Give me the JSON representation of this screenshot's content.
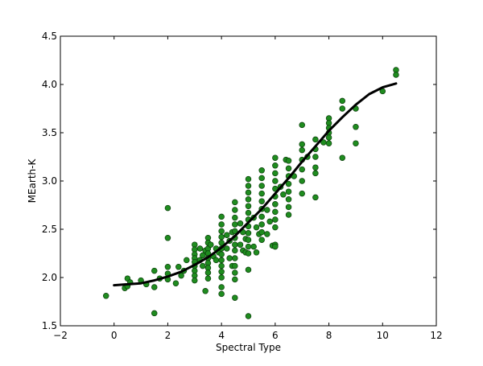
{
  "chart_data": {
    "type": "scatter",
    "xlabel": "Spectral Type",
    "ylabel": "MEarth-K",
    "xlim": [
      -2,
      12
    ],
    "ylim": [
      1.5,
      4.5
    ],
    "x_ticks": [
      -2,
      0,
      2,
      4,
      6,
      8,
      10,
      12
    ],
    "y_ticks": [
      1.5,
      2.0,
      2.5,
      3.0,
      3.5,
      4.0,
      4.5
    ],
    "x_tick_labels": [
      "−2",
      "0",
      "2",
      "4",
      "6",
      "8",
      "10",
      "12"
    ],
    "y_tick_labels": [
      "1.5",
      "2.0",
      "2.5",
      "3.0",
      "3.5",
      "4.0",
      "4.5"
    ],
    "grid": false,
    "marker_color": "#1f8c1f",
    "marker_edge_color": "#0b3d0b",
    "fit_color": "#000000",
    "series": [
      {
        "kind": "scatter",
        "points": [
          [
            -0.3,
            1.81
          ],
          [
            0.4,
            1.89
          ],
          [
            0.5,
            1.91
          ],
          [
            0.5,
            1.99
          ],
          [
            0.6,
            1.95
          ],
          [
            1.0,
            1.97
          ],
          [
            1.2,
            1.93
          ],
          [
            1.5,
            1.9
          ],
          [
            1.5,
            1.63
          ],
          [
            1.5,
            2.07
          ],
          [
            1.7,
            1.99
          ],
          [
            2.0,
            2.72
          ],
          [
            2.0,
            2.41
          ],
          [
            2.0,
            2.11
          ],
          [
            2.0,
            2.04
          ],
          [
            2.0,
            1.98
          ],
          [
            2.3,
            1.94
          ],
          [
            2.4,
            2.11
          ],
          [
            2.5,
            2.02
          ],
          [
            2.6,
            2.07
          ],
          [
            2.7,
            2.18
          ],
          [
            3.0,
            2.34
          ],
          [
            3.0,
            2.29
          ],
          [
            3.0,
            2.24
          ],
          [
            3.0,
            2.2
          ],
          [
            3.0,
            2.16
          ],
          [
            3.0,
            2.12
          ],
          [
            3.0,
            2.07
          ],
          [
            3.0,
            2.02
          ],
          [
            3.0,
            1.97
          ],
          [
            3.2,
            2.3
          ],
          [
            3.2,
            2.18
          ],
          [
            3.3,
            2.23
          ],
          [
            3.3,
            2.12
          ],
          [
            3.4,
            2.28
          ],
          [
            3.4,
            1.86
          ],
          [
            3.5,
            2.41
          ],
          [
            3.5,
            2.36
          ],
          [
            3.5,
            2.3
          ],
          [
            3.5,
            2.25
          ],
          [
            3.5,
            2.2
          ],
          [
            3.5,
            2.15
          ],
          [
            3.5,
            2.1
          ],
          [
            3.5,
            2.05
          ],
          [
            3.5,
            1.99
          ],
          [
            3.6,
            2.34
          ],
          [
            3.7,
            2.22
          ],
          [
            3.8,
            2.3
          ],
          [
            3.8,
            2.18
          ],
          [
            3.9,
            2.26
          ],
          [
            4.0,
            2.63
          ],
          [
            4.0,
            2.55
          ],
          [
            4.0,
            2.48
          ],
          [
            4.0,
            2.42
          ],
          [
            4.0,
            2.36
          ],
          [
            4.0,
            2.3
          ],
          [
            4.0,
            2.24
          ],
          [
            4.0,
            2.18
          ],
          [
            4.0,
            2.12
          ],
          [
            4.0,
            2.06
          ],
          [
            4.0,
            2.0
          ],
          [
            4.0,
            1.9
          ],
          [
            4.0,
            1.83
          ],
          [
            4.2,
            2.44
          ],
          [
            4.2,
            2.3
          ],
          [
            4.3,
            2.38
          ],
          [
            4.3,
            2.2
          ],
          [
            4.4,
            2.47
          ],
          [
            4.4,
            2.12
          ],
          [
            4.5,
            2.78
          ],
          [
            4.5,
            2.7
          ],
          [
            4.5,
            2.62
          ],
          [
            4.5,
            2.55
          ],
          [
            4.5,
            2.48
          ],
          [
            4.5,
            2.41
          ],
          [
            4.5,
            2.34
          ],
          [
            4.5,
            2.28
          ],
          [
            4.5,
            2.2
          ],
          [
            4.5,
            2.12
          ],
          [
            4.5,
            2.05
          ],
          [
            4.5,
            1.98
          ],
          [
            4.5,
            1.79
          ],
          [
            4.7,
            2.56
          ],
          [
            4.7,
            2.34
          ],
          [
            4.8,
            2.47
          ],
          [
            4.8,
            2.28
          ],
          [
            4.9,
            2.4
          ],
          [
            4.9,
            2.26
          ],
          [
            5.0,
            3.02
          ],
          [
            5.0,
            2.95
          ],
          [
            5.0,
            2.88
          ],
          [
            5.0,
            2.81
          ],
          [
            5.0,
            2.74
          ],
          [
            5.0,
            2.67
          ],
          [
            5.0,
            2.6
          ],
          [
            5.0,
            2.53
          ],
          [
            5.0,
            2.46
          ],
          [
            5.0,
            2.39
          ],
          [
            5.0,
            2.32
          ],
          [
            5.0,
            2.25
          ],
          [
            5.0,
            2.08
          ],
          [
            5.0,
            1.6
          ],
          [
            5.2,
            2.62
          ],
          [
            5.2,
            2.32
          ],
          [
            5.3,
            2.52
          ],
          [
            5.3,
            2.26
          ],
          [
            5.4,
            2.45
          ],
          [
            5.5,
            3.11
          ],
          [
            5.5,
            3.03
          ],
          [
            5.5,
            2.95
          ],
          [
            5.5,
            2.87
          ],
          [
            5.5,
            2.79
          ],
          [
            5.5,
            2.71
          ],
          [
            5.5,
            2.63
          ],
          [
            5.5,
            2.55
          ],
          [
            5.5,
            2.47
          ],
          [
            5.5,
            2.39
          ],
          [
            5.7,
            2.7
          ],
          [
            5.7,
            2.45
          ],
          [
            5.8,
            2.58
          ],
          [
            5.9,
            2.33
          ],
          [
            6.0,
            3.24
          ],
          [
            6.0,
            3.16
          ],
          [
            6.0,
            3.08
          ],
          [
            6.0,
            3.0
          ],
          [
            6.0,
            2.92
          ],
          [
            6.0,
            2.84
          ],
          [
            6.0,
            2.76
          ],
          [
            6.0,
            2.68
          ],
          [
            6.0,
            2.6
          ],
          [
            6.0,
            2.52
          ],
          [
            6.0,
            2.34
          ],
          [
            6.0,
            2.32
          ],
          [
            6.2,
            2.94
          ],
          [
            6.3,
            2.86
          ],
          [
            6.4,
            3.22
          ],
          [
            6.5,
            3.21
          ],
          [
            6.5,
            3.13
          ],
          [
            6.5,
            3.05
          ],
          [
            6.5,
            2.97
          ],
          [
            6.5,
            2.89
          ],
          [
            6.5,
            2.81
          ],
          [
            6.5,
            2.73
          ],
          [
            6.5,
            2.65
          ],
          [
            6.7,
            3.05
          ],
          [
            7.0,
            3.58
          ],
          [
            7.0,
            3.38
          ],
          [
            7.0,
            3.32
          ],
          [
            7.0,
            3.22
          ],
          [
            7.0,
            3.12
          ],
          [
            7.0,
            3.0
          ],
          [
            7.0,
            2.87
          ],
          [
            7.2,
            3.25
          ],
          [
            7.5,
            3.43
          ],
          [
            7.5,
            3.33
          ],
          [
            7.5,
            3.25
          ],
          [
            7.5,
            3.14
          ],
          [
            7.5,
            3.08
          ],
          [
            7.5,
            2.83
          ],
          [
            7.8,
            3.4
          ],
          [
            8.0,
            3.65
          ],
          [
            8.0,
            3.6
          ],
          [
            8.0,
            3.55
          ],
          [
            8.0,
            3.5
          ],
          [
            8.0,
            3.45
          ],
          [
            8.0,
            3.39
          ],
          [
            8.5,
            3.83
          ],
          [
            8.5,
            3.75
          ],
          [
            8.5,
            3.24
          ],
          [
            9.0,
            3.75
          ],
          [
            9.0,
            3.56
          ],
          [
            9.0,
            3.39
          ],
          [
            10.0,
            3.93
          ],
          [
            10.5,
            4.15
          ],
          [
            10.5,
            4.1
          ]
        ]
      },
      {
        "kind": "line",
        "points": [
          [
            0.0,
            1.92
          ],
          [
            0.5,
            1.93
          ],
          [
            1.0,
            1.94
          ],
          [
            1.5,
            1.97
          ],
          [
            2.0,
            2.01
          ],
          [
            2.5,
            2.06
          ],
          [
            3.0,
            2.13
          ],
          [
            3.5,
            2.21
          ],
          [
            4.0,
            2.31
          ],
          [
            4.5,
            2.43
          ],
          [
            5.0,
            2.57
          ],
          [
            5.5,
            2.71
          ],
          [
            6.0,
            2.87
          ],
          [
            6.5,
            3.03
          ],
          [
            7.0,
            3.2
          ],
          [
            7.5,
            3.36
          ],
          [
            8.0,
            3.52
          ],
          [
            8.5,
            3.66
          ],
          [
            9.0,
            3.79
          ],
          [
            9.5,
            3.9
          ],
          [
            10.0,
            3.97
          ],
          [
            10.5,
            4.01
          ]
        ]
      }
    ]
  }
}
